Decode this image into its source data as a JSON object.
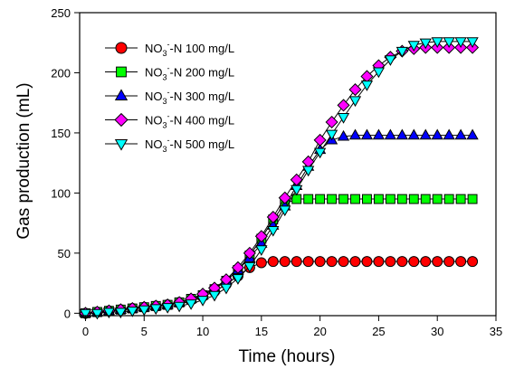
{
  "chart_data": {
    "type": "line",
    "title": "",
    "xlabel": "Time (hours)",
    "ylabel": "Gas production (mL)",
    "xlim": [
      -0.5,
      35
    ],
    "ylim": [
      -2,
      250
    ],
    "xticks": [
      0,
      5,
      10,
      15,
      20,
      25,
      30,
      35
    ],
    "yticks": [
      0,
      50,
      100,
      150,
      200,
      250
    ],
    "grid": false,
    "legend_position": "top-left",
    "x": [
      0,
      1,
      2,
      3,
      4,
      5,
      6,
      7,
      8,
      9,
      10,
      11,
      12,
      13,
      14,
      15,
      16,
      17,
      18,
      19,
      20,
      21,
      22,
      23,
      24,
      25,
      26,
      27,
      28,
      29,
      30,
      31,
      32,
      33
    ],
    "series": [
      {
        "name_prefix": "NO",
        "name_sub": "3",
        "name_sup": "-",
        "name_suffix": "-N 100 mg/L",
        "marker": "circle",
        "color": "#ff0000",
        "values": [
          0,
          1,
          2,
          3,
          4,
          5,
          6,
          7,
          9,
          11,
          14,
          18,
          24,
          31,
          38,
          42,
          43,
          43,
          43,
          43,
          43,
          43,
          43,
          43,
          43,
          43,
          43,
          43,
          43,
          43,
          43,
          43,
          43,
          43
        ]
      },
      {
        "name_prefix": "NO",
        "name_sub": "3",
        "name_sup": "-",
        "name_suffix": "-N 200 mg/L",
        "marker": "square",
        "color": "#00ff00",
        "values": [
          0,
          1,
          2,
          3,
          4,
          5,
          6,
          7,
          9,
          12,
          15,
          20,
          27,
          36,
          48,
          62,
          78,
          91,
          95,
          95,
          95,
          95,
          95,
          95,
          95,
          95,
          95,
          95,
          95,
          95,
          95,
          95,
          95,
          95
        ]
      },
      {
        "name_prefix": "NO",
        "name_sub": "3",
        "name_sup": "-",
        "name_suffix": "-N 300 mg/L",
        "marker": "triangle-up",
        "color": "#0000ff",
        "values": [
          0,
          1,
          2,
          3,
          4,
          5,
          6,
          7,
          9,
          12,
          15,
          20,
          27,
          36,
          46,
          58,
          73,
          89,
          106,
          122,
          136,
          144,
          147,
          148,
          148,
          148,
          148,
          148,
          148,
          148,
          148,
          148,
          148,
          148
        ]
      },
      {
        "name_prefix": "NO",
        "name_sub": "3",
        "name_sup": "-",
        "name_suffix": "-N 400 mg/L",
        "marker": "diamond",
        "color": "#ff00ff",
        "values": [
          0,
          1,
          2,
          3,
          4,
          5,
          6,
          7,
          9,
          12,
          16,
          21,
          28,
          38,
          50,
          64,
          80,
          96,
          111,
          126,
          144,
          159,
          173,
          186,
          197,
          206,
          213,
          218,
          220,
          221,
          221,
          221,
          221,
          221
        ]
      },
      {
        "name_prefix": "NO",
        "name_sub": "3",
        "name_sup": "-",
        "name_suffix": "-N 500 mg/L",
        "marker": "triangle-down",
        "color": "#00ffff",
        "values": [
          0,
          0,
          1,
          1,
          2,
          3,
          4,
          5,
          6,
          8,
          11,
          15,
          21,
          29,
          39,
          53,
          69,
          86,
          103,
          119,
          134,
          149,
          163,
          177,
          190,
          201,
          211,
          218,
          223,
          225,
          226,
          226,
          226,
          226
        ]
      }
    ]
  }
}
